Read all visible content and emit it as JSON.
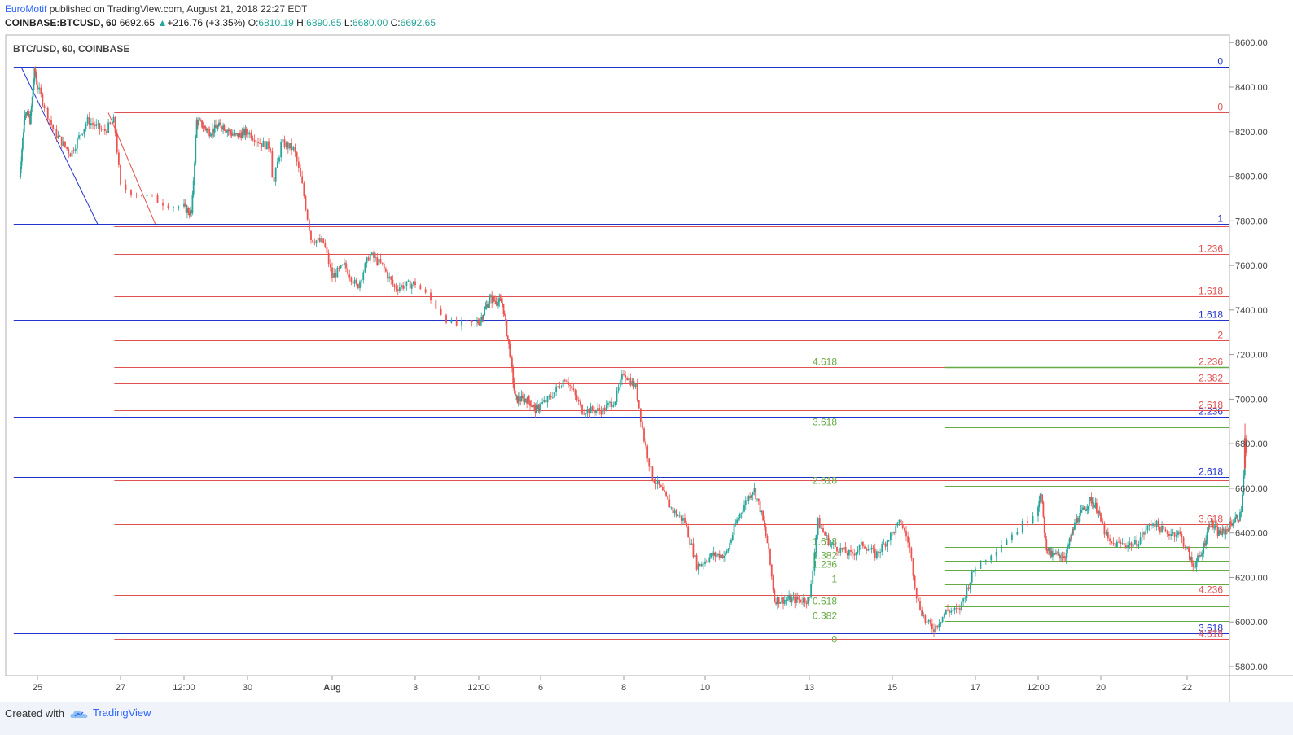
{
  "header": {
    "publisher": "EuroMotif",
    "published_text": "published on TradingView.com, August 21, 2018 22:27 EDT",
    "symbol": "COINBASE:BTCUSD, 60",
    "last": "6692.65",
    "change": "+216.76 (+3.35%)",
    "o_label": "O:",
    "o": "6810.19",
    "h_label": "H:",
    "h": "6890.65",
    "l_label": "L:",
    "l": "6680.00",
    "c_label": "C:",
    "c": "6692.65"
  },
  "footer": {
    "created_with": "Created with",
    "brand": "TradingView"
  },
  "colors": {
    "up": "#26a69a",
    "down": "#ef5350",
    "fib_blue": "#2233cc",
    "fib_red": "#e05050",
    "fib_green": "#66aa44",
    "grid": "#d0d0d0"
  },
  "chart_data": {
    "type": "candlestick",
    "title": "BTC/USD, 60, COINBASE",
    "ylim": [
      5740,
      8640
    ],
    "y_ticks": [
      "8600.00",
      "8400.00",
      "8200.00",
      "8000.00",
      "7800.00",
      "7600.00",
      "7400.00",
      "7200.00",
      "7000.00",
      "6800.00",
      "6600.00",
      "6400.00",
      "6200.00",
      "6000.00",
      "5800.00"
    ],
    "x_ticks": [
      "25",
      "27",
      "12:00",
      "30",
      "Aug",
      "3",
      "12:00",
      "6",
      "8",
      "10",
      "13",
      "15",
      "17",
      "12:00",
      "20",
      "22"
    ],
    "price_path": [
      [
        24.0,
        8000
      ],
      [
        24.3,
        8300
      ],
      [
        24.6,
        8250
      ],
      [
        24.85,
        8480
      ],
      [
        25.0,
        8400
      ],
      [
        25.4,
        8200
      ],
      [
        25.8,
        8100
      ],
      [
        26.2,
        8250
      ],
      [
        26.6,
        8200
      ],
      [
        26.85,
        8250
      ],
      [
        27.0,
        7950
      ],
      [
        27.4,
        7870
      ],
      [
        27.8,
        7830
      ],
      [
        28.0,
        8250
      ],
      [
        28.5,
        8200
      ],
      [
        29.0,
        8230
      ],
      [
        29.5,
        8180
      ],
      [
        30.0,
        8200
      ],
      [
        30.3,
        8150
      ],
      [
        30.55,
        8130
      ],
      [
        30.6,
        7950
      ],
      [
        30.8,
        8150
      ],
      [
        31.1,
        8120
      ],
      [
        31.3,
        7950
      ],
      [
        31.5,
        7720
      ],
      [
        31.8,
        7700
      ],
      [
        32.0,
        7550
      ],
      [
        32.3,
        7600
      ],
      [
        32.6,
        7500
      ],
      [
        32.9,
        7650
      ],
      [
        33.2,
        7600
      ],
      [
        33.5,
        7500
      ],
      [
        34.0,
        7520
      ],
      [
        34.3,
        7330
      ],
      [
        34.6,
        7350
      ],
      [
        35.0,
        7450
      ],
      [
        35.5,
        7430
      ],
      [
        35.8,
        7200
      ],
      [
        36.0,
        7000
      ],
      [
        36.5,
        7000
      ],
      [
        36.8,
        6950
      ],
      [
        37.2,
        7000
      ],
      [
        37.6,
        7100
      ],
      [
        38.0,
        6950
      ],
      [
        38.5,
        6950
      ],
      [
        38.8,
        7000
      ],
      [
        39.0,
        7120
      ],
      [
        39.3,
        7050
      ],
      [
        39.5,
        6820
      ],
      [
        39.7,
        6650
      ],
      [
        39.9,
        6600
      ],
      [
        40.2,
        6500
      ],
      [
        40.5,
        6450
      ],
      [
        40.8,
        6250
      ],
      [
        41.2,
        6300
      ],
      [
        41.6,
        6300
      ],
      [
        41.9,
        6450
      ],
      [
        42.2,
        6550
      ],
      [
        42.4,
        6600
      ],
      [
        42.6,
        6500
      ],
      [
        42.8,
        6350
      ],
      [
        43.0,
        6100
      ],
      [
        43.3,
        6100
      ],
      [
        43.6,
        6100
      ],
      [
        44.0,
        6100
      ],
      [
        44.2,
        6450
      ],
      [
        44.5,
        6350
      ],
      [
        45.0,
        6300
      ],
      [
        45.3,
        6350
      ],
      [
        45.6,
        6300
      ],
      [
        46.0,
        6400
      ],
      [
        46.2,
        6450
      ],
      [
        46.4,
        6350
      ],
      [
        46.6,
        6100
      ],
      [
        46.8,
        6000
      ],
      [
        47.0,
        5970
      ],
      [
        47.3,
        6050
      ],
      [
        47.6,
        6050
      ],
      [
        47.9,
        6200
      ],
      [
        48.2,
        6350
      ],
      [
        48.4,
        6450
      ],
      [
        48.6,
        6600
      ],
      [
        48.8,
        6350
      ],
      [
        49.0,
        6300
      ],
      [
        49.3,
        6300
      ],
      [
        49.6,
        6300
      ],
      [
        50.0,
        6450
      ],
      [
        50.3,
        6500
      ],
      [
        50.6,
        6550
      ],
      [
        50.9,
        6500
      ],
      [
        51.2,
        6350
      ],
      [
        51.5,
        6350
      ],
      [
        51.8,
        6350
      ],
      [
        52.2,
        6450
      ],
      [
        52.5,
        6400
      ],
      [
        52.8,
        6400
      ],
      [
        53.2,
        6250
      ],
      [
        53.5,
        6300
      ],
      [
        53.8,
        6450
      ],
      [
        54.1,
        6400
      ],
      [
        54.3,
        6400
      ],
      [
        54.6,
        6450
      ],
      [
        54.9,
        6480
      ],
      [
        55.0,
        6650
      ],
      [
        55.05,
        6850
      ],
      [
        55.1,
        6692
      ]
    ],
    "fib_levels": [
      {
        "color": "blue",
        "label": "0",
        "value": 8490,
        "x_start": 23.65
      },
      {
        "color": "blue",
        "label": "1",
        "value": 7785,
        "x_start": 23.65
      },
      {
        "color": "blue",
        "label": "1.618",
        "value": 7355,
        "x_start": 23.65
      },
      {
        "color": "blue",
        "label": "2.236",
        "value": 6920,
        "x_start": 23.65
      },
      {
        "color": "blue",
        "label": "2.618",
        "value": 6650,
        "x_start": 23.65
      },
      {
        "color": "blue",
        "label": "3.618",
        "value": 5950,
        "x_start": 23.65
      },
      {
        "color": "red",
        "label": "0",
        "value": 8285,
        "x_start": 26.85
      },
      {
        "color": "red",
        "label": "",
        "value": 7775,
        "x_start": 26.85
      },
      {
        "color": "red",
        "label": "1.236",
        "value": 7650,
        "x_start": 26.85
      },
      {
        "color": "red",
        "label": "1.618",
        "value": 7460,
        "x_start": 26.85
      },
      {
        "color": "red",
        "label": "2",
        "value": 7265,
        "x_start": 26.85
      },
      {
        "color": "red",
        "label": "2.236",
        "value": 7145,
        "x_start": 26.85
      },
      {
        "color": "red",
        "label": "2.382",
        "value": 7070,
        "x_start": 26.85
      },
      {
        "color": "red",
        "label": "2.618",
        "value": 6950,
        "x_start": 26.85
      },
      {
        "color": "red",
        "label": "",
        "value": 6635,
        "x_start": 26.85
      },
      {
        "color": "red",
        "label": "3.618",
        "value": 6440,
        "x_start": 26.85
      },
      {
        "color": "red",
        "label": "4.236",
        "value": 6120,
        "x_start": 26.85
      },
      {
        "color": "red",
        "label": "4.618",
        "value": 5925,
        "x_start": 26.85
      },
      {
        "color": "green",
        "label": "0",
        "value": 5900,
        "x_start": 47.25
      },
      {
        "color": "green",
        "label": "0.382",
        "value": 6005,
        "x_start": 47.25
      },
      {
        "color": "green",
        "label": "0.618",
        "value": 6070,
        "x_start": 47.25
      },
      {
        "color": "green",
        "label": "1",
        "value": 6170,
        "x_start": 47.25
      },
      {
        "color": "green",
        "label": "1.236",
        "value": 6235,
        "x_start": 47.25
      },
      {
        "color": "green",
        "label": "1.382",
        "value": 6275,
        "x_start": 47.25
      },
      {
        "color": "green",
        "label": "1.618",
        "value": 6335,
        "x_start": 47.25
      },
      {
        "color": "green",
        "label": "2.618",
        "value": 6610,
        "x_start": 47.25
      },
      {
        "color": "green",
        "label": "3.618",
        "value": 6875,
        "x_start": 47.25
      },
      {
        "color": "green",
        "label": "4.618",
        "value": 7145,
        "x_start": 47.25
      }
    ]
  }
}
